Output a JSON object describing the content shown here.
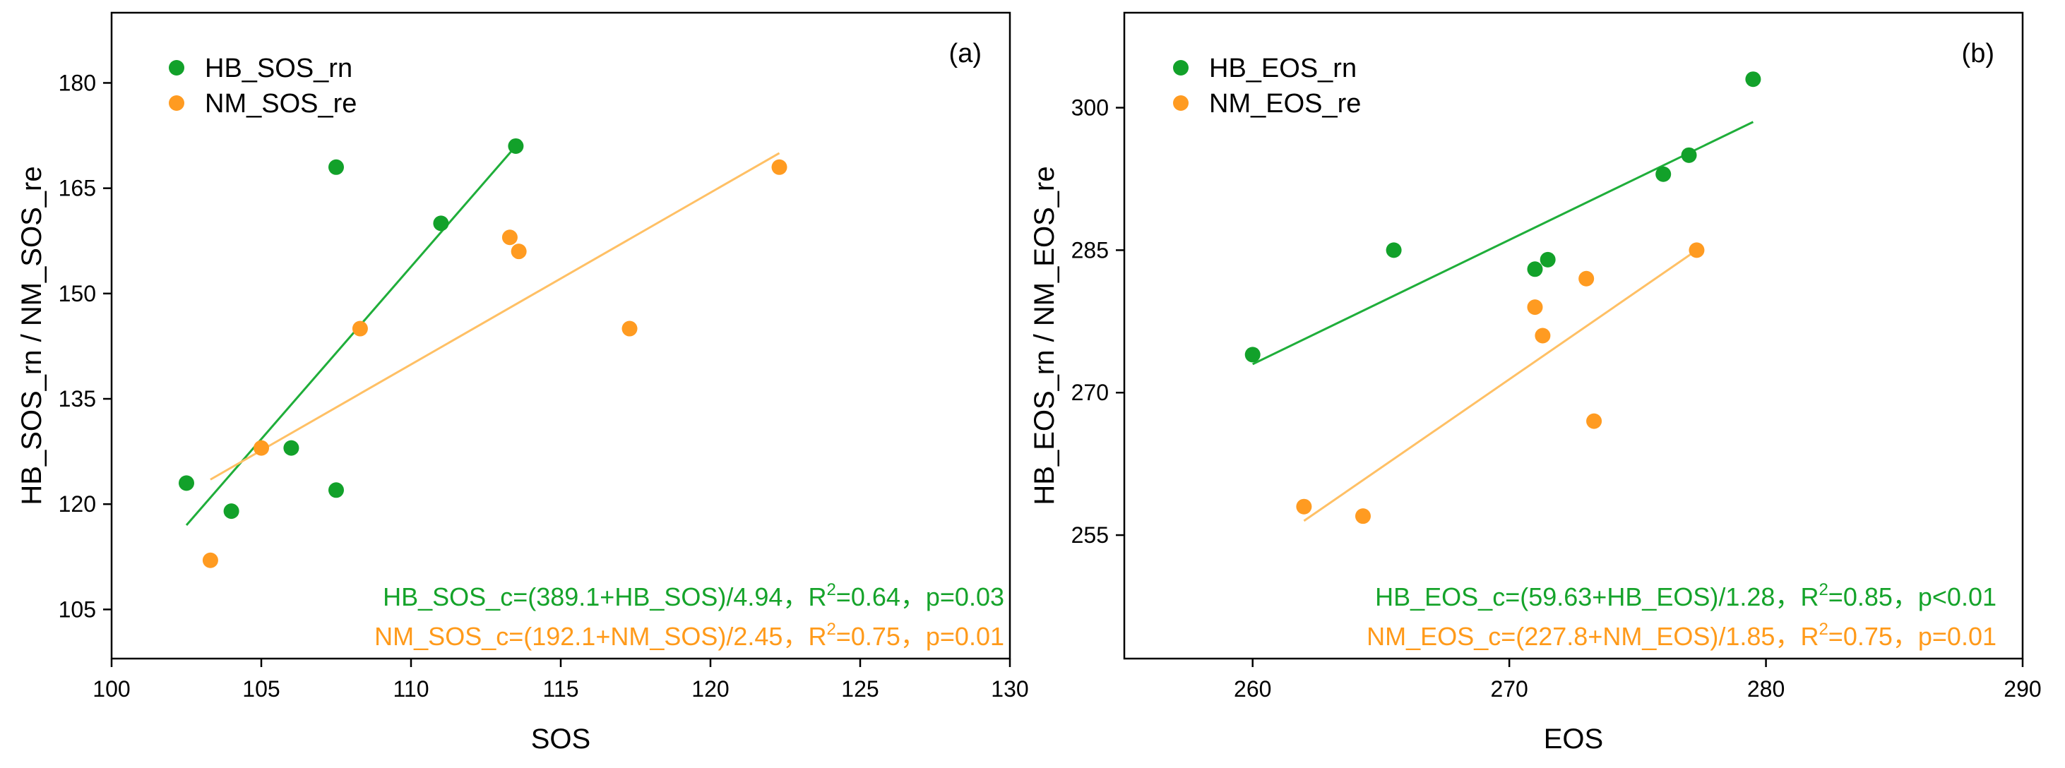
{
  "colors": {
    "hb": "#12a12a",
    "nm": "#ff9b21",
    "hb_line": "#1fae3a",
    "nm_line": "#ffc065",
    "hb_text": "#15a32a",
    "nm_text": "#ff9a1a"
  },
  "chart_data": [
    {
      "type": "scatter",
      "panel_label": "(a)",
      "xlabel": "SOS",
      "ylabel": "HB_SOS_rn / NM_SOS_re",
      "xlim": [
        100,
        130
      ],
      "ylim": [
        98,
        190
      ],
      "xticks": [
        100,
        105,
        110,
        115,
        120,
        125,
        130
      ],
      "xtick_labels": [
        "100",
        "105",
        "110",
        "115",
        "120",
        "125",
        "130"
      ],
      "yticks": [
        105,
        120,
        135,
        150,
        165,
        180
      ],
      "ytick_labels": [
        "105",
        "120",
        "135",
        "150",
        "165",
        "180"
      ],
      "legend_position": "top-left",
      "series": [
        {
          "name": "HB_SOS_rn",
          "color_key": "hb",
          "points": [
            [
              102.5,
              123
            ],
            [
              104,
              119
            ],
            [
              106,
              128
            ],
            [
              107.5,
              122
            ],
            [
              107.5,
              168
            ],
            [
              111,
              160
            ],
            [
              113.5,
              171
            ]
          ],
          "fit_line": [
            [
              102.5,
              117
            ],
            [
              113.5,
              171
            ]
          ],
          "equation_parts": [
            "HB_SOS_c=(389.1+HB_SOS)/4.94，R",
            "2",
            "=0.64，p=0.03"
          ]
        },
        {
          "name": "NM_SOS_re",
          "color_key": "nm",
          "points": [
            [
              103.3,
              112
            ],
            [
              105,
              128
            ],
            [
              108.3,
              145
            ],
            [
              113.3,
              158
            ],
            [
              113.6,
              156
            ],
            [
              117.3,
              145
            ],
            [
              122.3,
              168
            ]
          ],
          "fit_line": [
            [
              103.3,
              123.5
            ],
            [
              122.3,
              170
            ]
          ],
          "equation_parts": [
            "NM_SOS_c=(192.1+NM_SOS)/2.45，R",
            "2",
            "=0.75，p=0.01"
          ]
        }
      ]
    },
    {
      "type": "scatter",
      "panel_label": "(b)",
      "xlabel": "EOS",
      "ylabel": "HB_EOS_rn / NM_EOS_re",
      "xlim": [
        255,
        290
      ],
      "ylim": [
        242,
        310
      ],
      "xticks": [
        260,
        270,
        280,
        290
      ],
      "xtick_labels": [
        "260",
        "270",
        "280",
        "290"
      ],
      "yticks": [
        255,
        270,
        285,
        300
      ],
      "ytick_labels": [
        "255",
        "270",
        "285",
        "300"
      ],
      "legend_position": "top-left",
      "series": [
        {
          "name": "HB_EOS_rn",
          "color_key": "hb",
          "points": [
            [
              260,
              274
            ],
            [
              265.5,
              285
            ],
            [
              271,
              283
            ],
            [
              271.5,
              284
            ],
            [
              276,
              293
            ],
            [
              277,
              295
            ],
            [
              279.5,
              303
            ]
          ],
          "fit_line": [
            [
              260,
              273
            ],
            [
              279.5,
              298.5
            ]
          ],
          "equation_parts": [
            "HB_EOS_c=(59.63+HB_EOS)/1.28，R",
            "2",
            "=0.85，p<0.01"
          ]
        },
        {
          "name": "NM_EOS_re",
          "color_key": "nm",
          "points": [
            [
              262,
              258
            ],
            [
              264.3,
              257
            ],
            [
              271,
              279
            ],
            [
              271.3,
              276
            ],
            [
              273,
              282
            ],
            [
              273.3,
              267
            ],
            [
              277.3,
              285
            ]
          ],
          "fit_line": [
            [
              262,
              256.5
            ],
            [
              277.3,
              285
            ]
          ],
          "equation_parts": [
            "NM_EOS_c=(227.8+NM_EOS)/1.85，R",
            "2",
            "=0.75，p=0.01"
          ]
        }
      ]
    }
  ]
}
